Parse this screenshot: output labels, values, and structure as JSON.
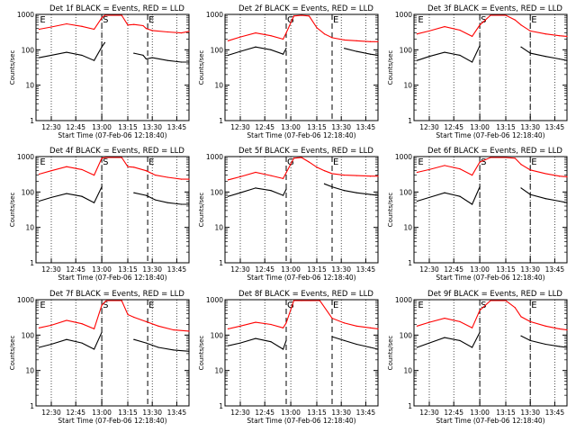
{
  "chart_data": [
    {
      "type": "line",
      "title": "Det 1f BLACK = Events, RED = LLD",
      "ylabel": "Counts/sec",
      "xlabel": "Start Time (07-Feb-06 12:18:40)",
      "xticks": [
        "12:30",
        "12:45",
        "13:00",
        "13:15",
        "13:30",
        "13:45"
      ],
      "yticks": [
        "1",
        "10",
        "100",
        "1000"
      ],
      "ylim": [
        1,
        1000
      ],
      "log_y": true,
      "markers": [
        {
          "label": "E",
          "x": 0.02
        },
        {
          "label": "S",
          "x": 0.43
        },
        {
          "label": "E",
          "x": 0.73
        }
      ],
      "x": [
        0.02,
        0.1,
        0.2,
        0.3,
        0.38,
        0.43,
        0.45,
        0.56,
        0.6,
        0.64,
        0.7,
        0.72,
        0.76,
        0.86,
        0.95,
        1.0
      ],
      "series": [
        {
          "name": "RED",
          "color": "#ff0000",
          "values": [
            380,
            440,
            540,
            460,
            380,
            800,
            1000,
            1000,
            500,
            520,
            480,
            400,
            350,
            320,
            300,
            330
          ]
        },
        {
          "name": "BLACK",
          "color": "#000000",
          "values": [
            60,
            70,
            85,
            70,
            50,
            120,
            160,
            null,
            null,
            80,
            70,
            55,
            60,
            50,
            45,
            45
          ]
        }
      ]
    },
    {
      "type": "line",
      "title": "Det 2f BLACK = Events, RED = LLD",
      "ylabel": "Counts/sec",
      "xlabel": "Start Time (07-Feb-06 12:18:40)",
      "xticks": [
        "12:30",
        "12:45",
        "13:00",
        "13:15",
        "13:30",
        "13:45"
      ],
      "yticks": [
        "1",
        "10",
        "100",
        "1000"
      ],
      "ylim": [
        1,
        1000
      ],
      "log_y": true,
      "markers": [
        {
          "label": "G",
          "x": 0.4
        },
        {
          "label": "E",
          "x": 0.7
        }
      ],
      "x": [
        0.02,
        0.1,
        0.2,
        0.3,
        0.38,
        0.4,
        0.45,
        0.5,
        0.55,
        0.6,
        0.65,
        0.7,
        0.78,
        0.86,
        0.95,
        1.0
      ],
      "series": [
        {
          "name": "RED",
          "color": "#ff0000",
          "values": [
            180,
            230,
            300,
            250,
            200,
            300,
            900,
            1000,
            900,
            420,
            280,
            220,
            190,
            180,
            170,
            170
          ]
        },
        {
          "name": "BLACK",
          "color": "#000000",
          "values": [
            70,
            90,
            120,
            100,
            75,
            110,
            null,
            null,
            null,
            null,
            null,
            null,
            110,
            90,
            75,
            70
          ]
        }
      ]
    },
    {
      "type": "line",
      "title": "Det 3f BLACK = Events, RED = LLD",
      "ylabel": "Counts/sec",
      "xlabel": "Start Time (07-Feb-06 12:18:40)",
      "xticks": [
        "12:30",
        "12:45",
        "13:00",
        "13:15",
        "13:30",
        "13:45"
      ],
      "yticks": [
        "1",
        "10",
        "100",
        "1000"
      ],
      "ylim": [
        1,
        1000
      ],
      "log_y": true,
      "markers": [
        {
          "label": "E",
          "x": 0.02
        },
        {
          "label": "S",
          "x": 0.43
        },
        {
          "label": "E",
          "x": 0.76
        }
      ],
      "x": [
        0.02,
        0.1,
        0.2,
        0.3,
        0.38,
        0.43,
        0.5,
        0.6,
        0.66,
        0.7,
        0.76,
        0.86,
        0.95,
        1.0
      ],
      "series": [
        {
          "name": "RED",
          "color": "#ff0000",
          "values": [
            280,
            340,
            450,
            360,
            240,
            500,
            1000,
            1000,
            700,
            500,
            340,
            280,
            250,
            240
          ]
        },
        {
          "name": "BLACK",
          "color": "#000000",
          "values": [
            50,
            65,
            85,
            70,
            45,
            130,
            null,
            null,
            null,
            120,
            80,
            65,
            55,
            50
          ]
        }
      ]
    },
    {
      "type": "line",
      "title": "Det 4f BLACK = Events, RED = LLD",
      "ylabel": "Counts/sec",
      "xlabel": "Start Time (07-Feb-06 12:18:40)",
      "xticks": [
        "12:30",
        "12:45",
        "13:00",
        "13:15",
        "13:30",
        "13:45"
      ],
      "yticks": [
        "1",
        "10",
        "100",
        "1000"
      ],
      "ylim": [
        1,
        1000
      ],
      "log_y": true,
      "markers": [
        {
          "label": "E",
          "x": 0.02
        },
        {
          "label": "S",
          "x": 0.43
        },
        {
          "label": "E",
          "x": 0.73
        }
      ],
      "x": [
        0.02,
        0.1,
        0.2,
        0.3,
        0.38,
        0.43,
        0.46,
        0.56,
        0.6,
        0.64,
        0.72,
        0.78,
        0.86,
        0.95,
        1.0
      ],
      "series": [
        {
          "name": "RED",
          "color": "#ff0000",
          "values": [
            320,
            400,
            520,
            430,
            300,
            900,
            1000,
            1000,
            520,
            500,
            400,
            300,
            260,
            230,
            230
          ]
        },
        {
          "name": "BLACK",
          "color": "#000000",
          "values": [
            55,
            70,
            90,
            75,
            50,
            140,
            null,
            null,
            null,
            95,
            80,
            60,
            50,
            45,
            45
          ]
        }
      ]
    },
    {
      "type": "line",
      "title": "Det 5f BLACK = Events, RED = LLD",
      "ylabel": "Counts/sec",
      "xlabel": "Start Time (07-Feb-06 12:18:40)",
      "xticks": [
        "12:30",
        "12:45",
        "13:00",
        "13:15",
        "13:30",
        "13:45"
      ],
      "yticks": [
        "1",
        "10",
        "100",
        "1000"
      ],
      "ylim": [
        1,
        1000
      ],
      "log_y": true,
      "markers": [
        {
          "label": "G",
          "x": 0.4
        },
        {
          "label": "E",
          "x": 0.7
        }
      ],
      "x": [
        0.02,
        0.1,
        0.2,
        0.3,
        0.38,
        0.4,
        0.45,
        0.5,
        0.55,
        0.6,
        0.65,
        0.7,
        0.78,
        0.86,
        0.95,
        1.0
      ],
      "series": [
        {
          "name": "RED",
          "color": "#ff0000",
          "values": [
            220,
            270,
            360,
            290,
            240,
            350,
            900,
            1000,
            700,
            500,
            400,
            330,
            300,
            290,
            280,
            280
          ]
        },
        {
          "name": "BLACK",
          "color": "#000000",
          "values": [
            75,
            95,
            130,
            110,
            80,
            120,
            null,
            null,
            null,
            null,
            170,
            140,
            110,
            95,
            85,
            80
          ]
        }
      ]
    },
    {
      "type": "line",
      "title": "Det 6f BLACK = Events, RED = LLD",
      "ylabel": "Counts/sec",
      "xlabel": "Start Time (07-Feb-06 12:18:40)",
      "xticks": [
        "12:30",
        "12:45",
        "13:00",
        "13:15",
        "13:30",
        "13:45"
      ],
      "yticks": [
        "1",
        "10",
        "100",
        "1000"
      ],
      "ylim": [
        1,
        1000
      ],
      "log_y": true,
      "markers": [
        {
          "label": "E",
          "x": 0.02
        },
        {
          "label": "S",
          "x": 0.43
        },
        {
          "label": "E",
          "x": 0.76
        }
      ],
      "x": [
        0.02,
        0.1,
        0.2,
        0.3,
        0.38,
        0.43,
        0.5,
        0.6,
        0.66,
        0.7,
        0.76,
        0.86,
        0.95,
        1.0
      ],
      "series": [
        {
          "name": "RED",
          "color": "#ff0000",
          "values": [
            360,
            430,
            560,
            450,
            300,
            700,
            1000,
            1000,
            900,
            600,
            420,
            330,
            280,
            270
          ]
        },
        {
          "name": "BLACK",
          "color": "#000000",
          "values": [
            55,
            70,
            95,
            75,
            45,
            140,
            null,
            null,
            null,
            130,
            85,
            65,
            55,
            50
          ]
        }
      ]
    },
    {
      "type": "line",
      "title": "Det 7f BLACK = Events, RED = LLD",
      "ylabel": "Counts/sec",
      "xlabel": "Start Time (07-Feb-06 12:18:40)",
      "xticks": [
        "12:30",
        "12:45",
        "13:00",
        "13:15",
        "13:30",
        "13:45"
      ],
      "yticks": [
        "1",
        "10",
        "100",
        "1000"
      ],
      "ylim": [
        1,
        1000
      ],
      "log_y": true,
      "markers": [
        {
          "label": "E",
          "x": 0.02
        },
        {
          "label": "S",
          "x": 0.43
        },
        {
          "label": "E",
          "x": 0.73
        }
      ],
      "x": [
        0.02,
        0.1,
        0.2,
        0.3,
        0.38,
        0.43,
        0.46,
        0.56,
        0.6,
        0.64,
        0.72,
        0.8,
        0.9,
        1.0
      ],
      "series": [
        {
          "name": "RED",
          "color": "#ff0000",
          "values": [
            160,
            190,
            260,
            210,
            150,
            700,
            1000,
            1000,
            380,
            320,
            240,
            180,
            140,
            130
          ]
        },
        {
          "name": "BLACK",
          "color": "#000000",
          "values": [
            45,
            55,
            75,
            60,
            40,
            120,
            null,
            null,
            null,
            75,
            60,
            45,
            38,
            35
          ]
        }
      ]
    },
    {
      "type": "line",
      "title": "Det 8f BLACK = Events, RED = LLD",
      "ylabel": "Counts/sec",
      "xlabel": "Start Time (07-Feb-06 12:18:40)",
      "xticks": [
        "12:30",
        "12:45",
        "13:00",
        "13:15",
        "13:30",
        "13:45"
      ],
      "yticks": [
        "1",
        "10",
        "100",
        "1000"
      ],
      "ylim": [
        1,
        1000
      ],
      "log_y": true,
      "markers": [
        {
          "label": "G",
          "x": 0.4
        },
        {
          "label": "E",
          "x": 0.7
        }
      ],
      "x": [
        0.02,
        0.1,
        0.2,
        0.3,
        0.38,
        0.4,
        0.45,
        0.5,
        0.56,
        0.62,
        0.7,
        0.78,
        0.86,
        0.95,
        1.0
      ],
      "series": [
        {
          "name": "RED",
          "color": "#ff0000",
          "values": [
            150,
            180,
            230,
            200,
            160,
            220,
            1000,
            1000,
            1000,
            1000,
            300,
            220,
            180,
            160,
            150
          ]
        },
        {
          "name": "BLACK",
          "color": "#000000",
          "values": [
            50,
            60,
            80,
            65,
            40,
            70,
            null,
            null,
            null,
            null,
            90,
            70,
            55,
            45,
            40
          ]
        }
      ]
    },
    {
      "type": "line",
      "title": "Det 9f BLACK = Events, RED = LLD",
      "ylabel": "Counts/sec",
      "xlabel": "Start Time (07-Feb-06 12:18:40)",
      "xticks": [
        "12:30",
        "12:45",
        "13:00",
        "13:15",
        "13:30",
        "13:45"
      ],
      "yticks": [
        "1",
        "10",
        "100",
        "1000"
      ],
      "ylim": [
        1,
        1000
      ],
      "log_y": true,
      "markers": [
        {
          "label": "E",
          "x": 0.02
        },
        {
          "label": "S",
          "x": 0.43
        },
        {
          "label": "E",
          "x": 0.76
        }
      ],
      "x": [
        0.02,
        0.1,
        0.2,
        0.3,
        0.38,
        0.43,
        0.5,
        0.6,
        0.66,
        0.7,
        0.76,
        0.86,
        0.95,
        1.0
      ],
      "series": [
        {
          "name": "RED",
          "color": "#ff0000",
          "values": [
            180,
            230,
            300,
            240,
            160,
            500,
            1000,
            1000,
            600,
            330,
            240,
            180,
            150,
            140
          ]
        },
        {
          "name": "BLACK",
          "color": "#000000",
          "values": [
            45,
            60,
            85,
            70,
            45,
            120,
            null,
            null,
            null,
            95,
            70,
            55,
            48,
            45
          ]
        }
      ]
    }
  ]
}
